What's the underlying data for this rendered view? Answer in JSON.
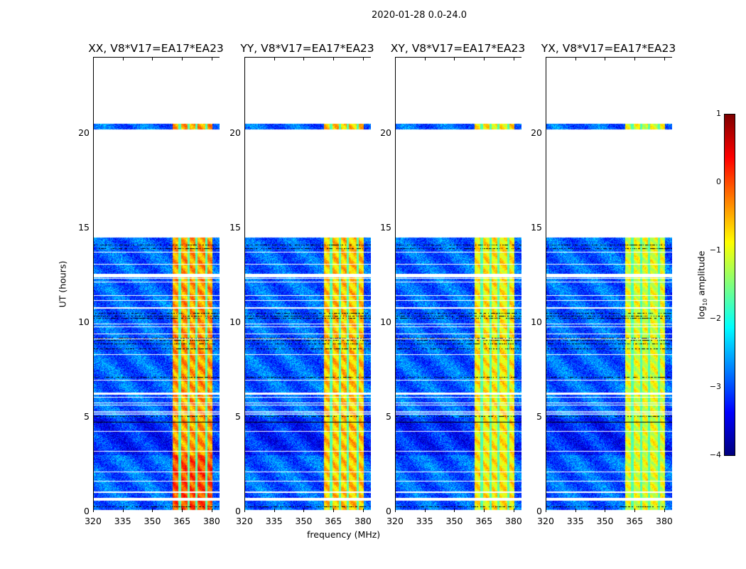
{
  "suptitle": "2020-01-28 0.0-24.0",
  "chart_data": {
    "type": "heatmap",
    "xlabel": "frequency (MHz)",
    "ylabel": "UT (hours)",
    "xlim": [
      320,
      383.6
    ],
    "ylim": [
      0,
      24
    ],
    "xticks": [
      "320",
      "335",
      "350",
      "365",
      "380"
    ],
    "xtick_values": [
      320,
      335,
      350,
      365,
      380
    ],
    "yticks": [
      "0",
      "5",
      "10",
      "15",
      "20"
    ],
    "ytick_values": [
      0,
      5,
      10,
      15,
      20
    ],
    "panels": [
      {
        "title": "XX, V8*V17=EA17*EA23",
        "band_level": -0.4
      },
      {
        "title": "YY, V8*V17=EA17*EA23",
        "band_level": -0.6
      },
      {
        "title": "XY, V8*V17=EA17*EA23",
        "band_level": -0.8
      },
      {
        "title": "YX, V8*V17=EA17*EA23",
        "band_level": -1.0
      }
    ],
    "data_time_segments_hours": [
      [
        0.1,
        0.6
      ],
      [
        0.75,
        1.0
      ],
      [
        1.1,
        6.2
      ],
      [
        6.3,
        12.4
      ],
      [
        12.6,
        14.5
      ],
      [
        20.2,
        20.5
      ]
    ],
    "bright_band_MHz": [
      360,
      380
    ],
    "background_level": -2.9,
    "colorbar": {
      "label": "log10 amplitude",
      "label_main": "log",
      "label_sub": "10",
      "label_rest": " amplitude",
      "range": [
        -4,
        1
      ],
      "ticks": [
        "1",
        "0",
        "−1",
        "−2",
        "−3",
        "−4"
      ],
      "tick_values": [
        1,
        0,
        -1,
        -2,
        -3,
        -4
      ],
      "colormap": "jet"
    }
  }
}
